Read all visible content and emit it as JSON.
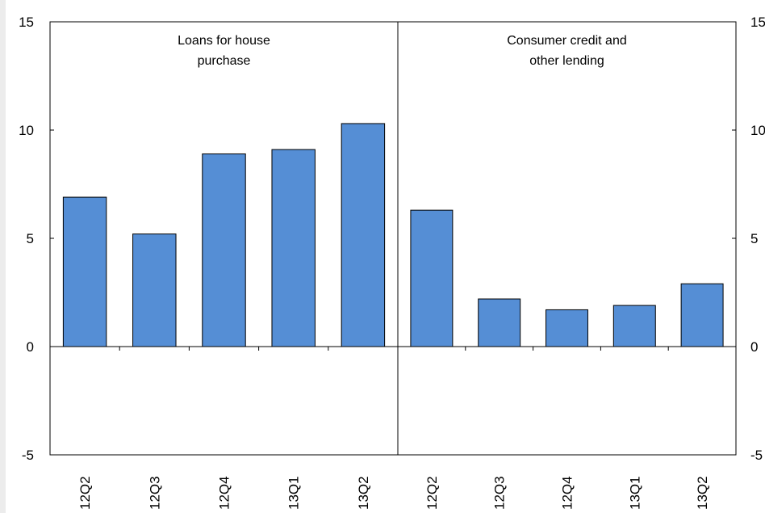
{
  "colors": {
    "bar_fill": "#558ED5",
    "bar_stroke": "#000000",
    "axis": "#000000",
    "strip": "#ECECEC"
  },
  "chart_data": {
    "type": "bar",
    "ylim": [
      -5,
      15
    ],
    "yticks": [
      15,
      10,
      5,
      0,
      -5
    ],
    "grid": false,
    "legend": "none",
    "panels": [
      {
        "title_lines": [
          "Loans for house",
          "purchase"
        ],
        "categories": [
          "12Q2",
          "12Q3",
          "12Q4",
          "13Q1",
          "13Q2"
        ],
        "values": [
          6.9,
          5.2,
          8.9,
          9.1,
          10.3
        ]
      },
      {
        "title_lines": [
          "Consumer credit and",
          "other lending"
        ],
        "categories": [
          "12Q2",
          "12Q3",
          "12Q4",
          "13Q1",
          "13Q2"
        ],
        "values": [
          6.3,
          2.2,
          1.7,
          1.9,
          2.9
        ]
      }
    ]
  }
}
